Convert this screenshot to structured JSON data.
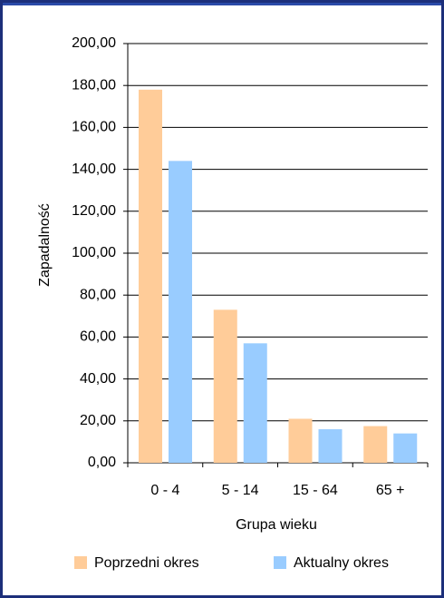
{
  "chart_data": {
    "type": "bar",
    "y_label": "Zapadalność",
    "x_label": "Grupa wieku",
    "categories": [
      "0 - 4",
      "5 - 14",
      "15 - 64",
      "65 +"
    ],
    "series": [
      {
        "name": "Poprzedni okres",
        "color": "#ffcc99",
        "values": [
          178,
          73,
          21,
          17.5
        ]
      },
      {
        "name": "Aktualny okres",
        "color": "#99ccff",
        "values": [
          144,
          57,
          16,
          14
        ]
      }
    ],
    "ylim": [
      0,
      200
    ],
    "yticks": [
      {
        "value": 0,
        "label": "0,00"
      },
      {
        "value": 20,
        "label": "20,00"
      },
      {
        "value": 40,
        "label": "40,00"
      },
      {
        "value": 60,
        "label": "60,00"
      },
      {
        "value": 80,
        "label": "80,00"
      },
      {
        "value": 100,
        "label": "100,00"
      },
      {
        "value": 120,
        "label": "120,00"
      },
      {
        "value": 140,
        "label": "140,00"
      },
      {
        "value": 160,
        "label": "160,00"
      },
      {
        "value": 180,
        "label": "180,00"
      },
      {
        "value": 200,
        "label": "200,00"
      }
    ],
    "grid": true
  }
}
